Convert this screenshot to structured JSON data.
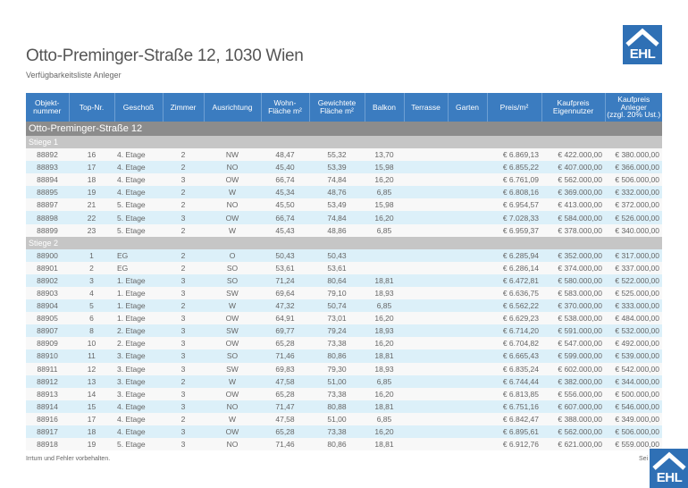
{
  "header": {
    "title": "Otto-Preminger-Straße 12, 1030 Wien",
    "subtitle": "Verfügbarkeitsliste Anleger",
    "logo_text": "EHL"
  },
  "colors": {
    "header_blue": "#3b7cc0",
    "row_blue": "#dcf0f9",
    "section_gray": "#8c8c8c",
    "subsection_gray": "#c6c6c6"
  },
  "columns": [
    "Objekt-\nnummer",
    "Top-Nr.",
    "Geschoß",
    "Zimmer",
    "Ausrichtung",
    "Wohn-\nFläche m²",
    "Gewichtete\nFläche m²",
    "Balkon",
    "Terrasse",
    "Garten",
    "Preis/m²",
    "Kaufpreis\nEigennutzer",
    "Kaufpreis\nAnleger\n(zzgl. 20% Ust.)"
  ],
  "section": "Otto-Preminger-Straße 12",
  "groups": [
    {
      "name": "Stiege 1",
      "rows": [
        [
          "88892",
          "16",
          "4. Etage",
          "2",
          "NW",
          "48,47",
          "55,32",
          "13,70",
          "",
          "",
          "€ 6.869,13",
          "€ 422.000,00",
          "€ 380.000,00"
        ],
        [
          "88893",
          "17",
          "4. Etage",
          "2",
          "NO",
          "45,40",
          "53,39",
          "15,98",
          "",
          "",
          "€ 6.855,22",
          "€ 407.000,00",
          "€ 366.000,00"
        ],
        [
          "88894",
          "18",
          "4. Etage",
          "3",
          "OW",
          "66,74",
          "74,84",
          "16,20",
          "",
          "",
          "€ 6.761,09",
          "€ 562.000,00",
          "€ 506.000,00"
        ],
        [
          "88895",
          "19",
          "4. Etage",
          "2",
          "W",
          "45,34",
          "48,76",
          "6,85",
          "",
          "",
          "€ 6.808,16",
          "€ 369.000,00",
          "€ 332.000,00"
        ],
        [
          "88897",
          "21",
          "5. Etage",
          "2",
          "NO",
          "45,50",
          "53,49",
          "15,98",
          "",
          "",
          "€ 6.954,57",
          "€ 413.000,00",
          "€ 372.000,00"
        ],
        [
          "88898",
          "22",
          "5. Etage",
          "3",
          "OW",
          "66,74",
          "74,84",
          "16,20",
          "",
          "",
          "€ 7.028,33",
          "€ 584.000,00",
          "€ 526.000,00"
        ],
        [
          "88899",
          "23",
          "5. Etage",
          "2",
          "W",
          "45,43",
          "48,86",
          "6,85",
          "",
          "",
          "€ 6.959,37",
          "€ 378.000,00",
          "€ 340.000,00"
        ]
      ]
    },
    {
      "name": "Stiege 2",
      "rows": [
        [
          "88900",
          "1",
          "EG",
          "2",
          "O",
          "50,43",
          "50,43",
          "",
          "",
          "",
          "€ 6.285,94",
          "€ 352.000,00",
          "€ 317.000,00"
        ],
        [
          "88901",
          "2",
          "EG",
          "2",
          "SO",
          "53,61",
          "53,61",
          "",
          "",
          "",
          "€ 6.286,14",
          "€ 374.000,00",
          "€ 337.000,00"
        ],
        [
          "88902",
          "3",
          "1. Etage",
          "3",
          "SO",
          "71,24",
          "80,64",
          "18,81",
          "",
          "",
          "€ 6.472,81",
          "€ 580.000,00",
          "€ 522.000,00"
        ],
        [
          "88903",
          "4",
          "1. Etage",
          "3",
          "SW",
          "69,64",
          "79,10",
          "18,93",
          "",
          "",
          "€ 6.636,75",
          "€ 583.000,00",
          "€ 525.000,00"
        ],
        [
          "88904",
          "5",
          "1. Etage",
          "2",
          "W",
          "47,32",
          "50,74",
          "6,85",
          "",
          "",
          "€ 6.562,22",
          "€ 370.000,00",
          "€ 333.000,00"
        ],
        [
          "88905",
          "6",
          "1. Etage",
          "3",
          "OW",
          "64,91",
          "73,01",
          "16,20",
          "",
          "",
          "€ 6.629,23",
          "€ 538.000,00",
          "€ 484.000,00"
        ],
        [
          "88907",
          "8",
          "2. Etage",
          "3",
          "SW",
          "69,77",
          "79,24",
          "18,93",
          "",
          "",
          "€ 6.714,20",
          "€ 591.000,00",
          "€ 532.000,00"
        ],
        [
          "88909",
          "10",
          "2. Etage",
          "3",
          "OW",
          "65,28",
          "73,38",
          "16,20",
          "",
          "",
          "€ 6.704,82",
          "€ 547.000,00",
          "€ 492.000,00"
        ],
        [
          "88910",
          "11",
          "3. Etage",
          "3",
          "SO",
          "71,46",
          "80,86",
          "18,81",
          "",
          "",
          "€ 6.665,43",
          "€ 599.000,00",
          "€ 539.000,00"
        ],
        [
          "88911",
          "12",
          "3. Etage",
          "3",
          "SW",
          "69,83",
          "79,30",
          "18,93",
          "",
          "",
          "€ 6.835,24",
          "€ 602.000,00",
          "€ 542.000,00"
        ],
        [
          "88912",
          "13",
          "3. Etage",
          "2",
          "W",
          "47,58",
          "51,00",
          "6,85",
          "",
          "",
          "€ 6.744,44",
          "€ 382.000,00",
          "€ 344.000,00"
        ],
        [
          "88913",
          "14",
          "3. Etage",
          "3",
          "OW",
          "65,28",
          "73,38",
          "16,20",
          "",
          "",
          "€ 6.813,85",
          "€ 556.000,00",
          "€ 500.000,00"
        ],
        [
          "88914",
          "15",
          "4. Etage",
          "3",
          "NO",
          "71,47",
          "80,88",
          "18,81",
          "",
          "",
          "€ 6.751,16",
          "€ 607.000,00",
          "€ 546.000,00"
        ],
        [
          "88916",
          "17",
          "4. Etage",
          "2",
          "W",
          "47,58",
          "51,00",
          "6,85",
          "",
          "",
          "€ 6.842,47",
          "€ 388.000,00",
          "€ 349.000,00"
        ],
        [
          "88917",
          "18",
          "4. Etage",
          "3",
          "OW",
          "65,28",
          "73,38",
          "16,20",
          "",
          "",
          "€ 6.895,61",
          "€ 562.000,00",
          "€ 506.000,00"
        ],
        [
          "88918",
          "19",
          "5. Etage",
          "3",
          "NO",
          "71,46",
          "80,86",
          "18,81",
          "",
          "",
          "€ 6.912,76",
          "€ 621.000,00",
          "€ 559.000,00"
        ]
      ]
    }
  ],
  "footer": {
    "disclaimer": "Irrtum und Fehler vorbehalten.",
    "page": "Sei"
  }
}
